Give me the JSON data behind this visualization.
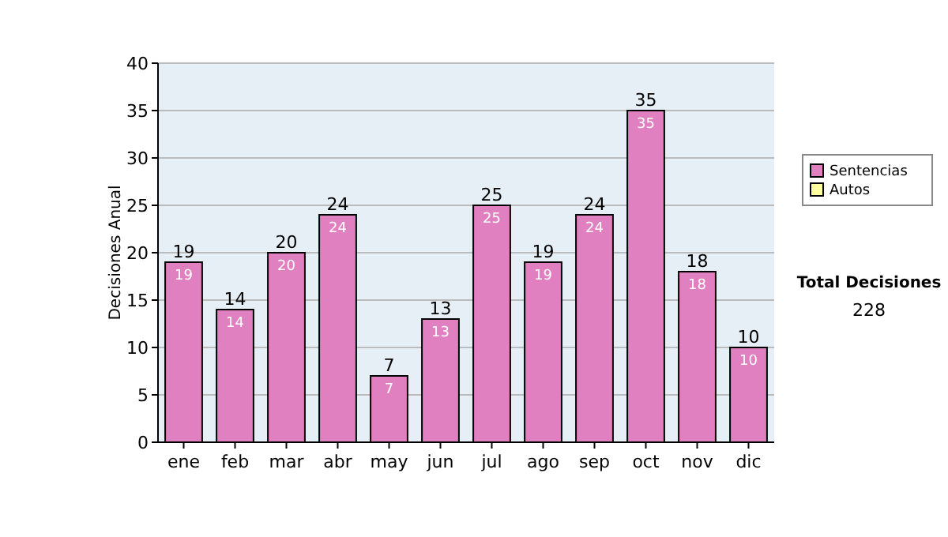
{
  "chart_data": {
    "type": "bar",
    "stacked": true,
    "ylabel": "Decisiones Anual",
    "categories": [
      "ene",
      "feb",
      "mar",
      "abr",
      "may",
      "jun",
      "jul",
      "ago",
      "sep",
      "oct",
      "nov",
      "dic"
    ],
    "series": [
      {
        "name": "Sentencias",
        "color": "#e080c0",
        "values": [
          19,
          14,
          20,
          24,
          7,
          13,
          25,
          19,
          24,
          35,
          18,
          10
        ],
        "value_labels": [
          "19",
          "14",
          "20",
          "24",
          "7",
          "13",
          "25",
          "19",
          "24",
          "35",
          "18",
          "10"
        ]
      },
      {
        "name": "Autos",
        "color": "#ffffa0",
        "values": [
          0,
          0,
          0,
          0,
          0,
          0,
          0,
          0,
          0,
          0,
          0,
          0
        ]
      }
    ],
    "totals": [
      "19",
      "14",
      "20",
      "24",
      "7",
      "13",
      "25",
      "19",
      "24",
      "35",
      "18",
      "10"
    ],
    "ylim": [
      0,
      40
    ],
    "yticks": [
      0,
      5,
      10,
      15,
      20,
      25,
      30,
      35,
      40
    ],
    "grid": "y",
    "legend": "right",
    "annotations": [
      "Total Decisiones",
      "228"
    ]
  }
}
